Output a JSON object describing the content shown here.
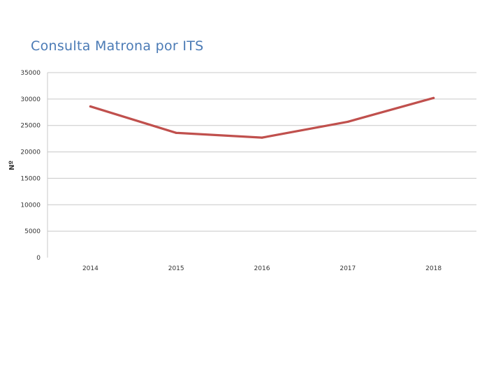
{
  "chart_data": {
    "type": "line",
    "title": "Consulta Matrona por ITS",
    "xlabel": "",
    "ylabel": "Nº",
    "categories": [
      "2014",
      "2015",
      "2016",
      "2017",
      "2018"
    ],
    "series": [
      {
        "name": "Consulta Matrona por ITS",
        "values": [
          28600,
          23600,
          22700,
          25700,
          30200
        ]
      }
    ],
    "ylim": [
      0,
      35000
    ],
    "yticks": [
      0,
      5000,
      10000,
      15000,
      20000,
      25000,
      30000,
      35000
    ],
    "grid": true,
    "line_color": "#c0504d",
    "grid_color": "#c8c8c8"
  }
}
